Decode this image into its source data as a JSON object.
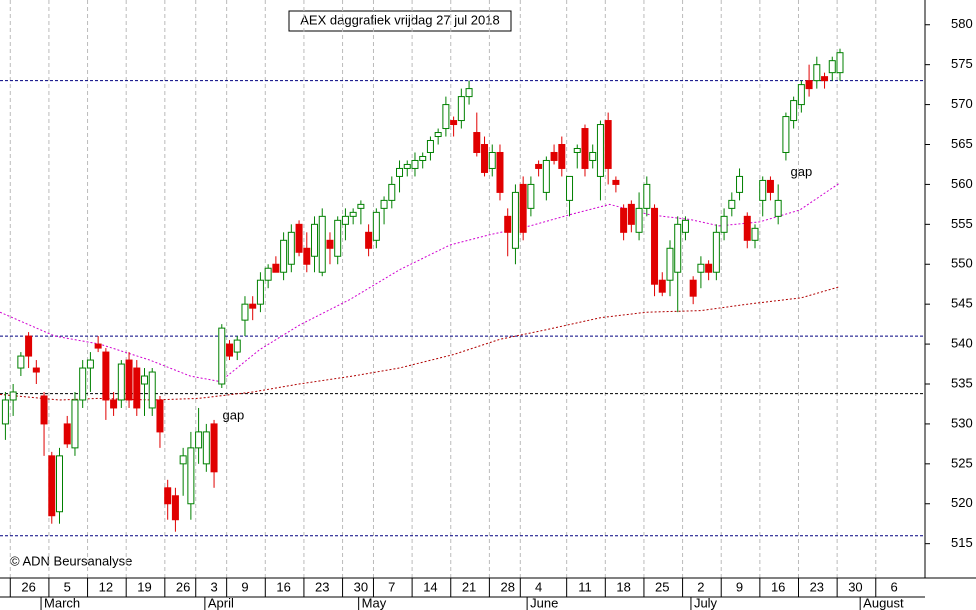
{
  "chart_data": {
    "type": "candlestick",
    "title": "AEX daggrafiek vrijdag 27 jul 2018",
    "annotations": [
      {
        "text": "gap",
        "x": 29.5,
        "y": 531
      },
      {
        "text": "gap",
        "x": 103,
        "y": 561.5
      }
    ],
    "copyright": "© ADN Beursanalyse",
    "xlim": [
      -0.7,
      119
    ],
    "ylim": [
      510.7,
      583.1
    ],
    "yticks": [
      515,
      520,
      525,
      530,
      535,
      540,
      545,
      550,
      555,
      560,
      565,
      570,
      575,
      580
    ],
    "xticks": [
      {
        "value": 3,
        "label": "26"
      },
      {
        "value": 8,
        "label": "5"
      },
      {
        "value": 13,
        "label": "12"
      },
      {
        "value": 18,
        "label": "19"
      },
      {
        "value": 23,
        "label": "26"
      },
      {
        "value": 27,
        "label": "3"
      },
      {
        "value": 31,
        "label": "9"
      },
      {
        "value": 36,
        "label": "16"
      },
      {
        "value": 41,
        "label": "23"
      },
      {
        "value": 46,
        "label": "30"
      },
      {
        "value": 50,
        "label": "7"
      },
      {
        "value": 55,
        "label": "14"
      },
      {
        "value": 60,
        "label": "21"
      },
      {
        "value": 65,
        "label": "28"
      },
      {
        "value": 69,
        "label": "4"
      },
      {
        "value": 75,
        "label": "11"
      },
      {
        "value": 80,
        "label": "18"
      },
      {
        "value": 85,
        "label": "25"
      },
      {
        "value": 90,
        "label": "2"
      },
      {
        "value": 95,
        "label": "9"
      },
      {
        "value": 100,
        "label": "16"
      },
      {
        "value": 105,
        "label": "23"
      },
      {
        "value": 110,
        "label": "30"
      },
      {
        "value": 115,
        "label": "6"
      }
    ],
    "months": [
      {
        "value": 5,
        "label": "March"
      },
      {
        "value": 26.2,
        "label": "April"
      },
      {
        "value": 46.1,
        "label": "May"
      },
      {
        "value": 67.9,
        "label": "June"
      },
      {
        "value": 89.1,
        "label": "July"
      },
      {
        "value": 111,
        "label": "August"
      }
    ],
    "up_color": "#008000",
    "down_color": "#e00000",
    "open": [
      530,
      533,
      537,
      541,
      537,
      533.5,
      526,
      519,
      530,
      527,
      533,
      537,
      540,
      539,
      533,
      533,
      538,
      537,
      535,
      532,
      533,
      522,
      521,
      525,
      520,
      527,
      525,
      530,
      535,
      540,
      539,
      543,
      545,
      545,
      548,
      550,
      549,
      550,
      555,
      552,
      551,
      549,
      553,
      551,
      555,
      556,
      557,
      554,
      553,
      557,
      558,
      561,
      562,
      562,
      563,
      564,
      566,
      567,
      568,
      568,
      571,
      566.5,
      565,
      562,
      564,
      556,
      552,
      560,
      557,
      562.5,
      559,
      564,
      565,
      558,
      564,
      567,
      563,
      561,
      568,
      560.5,
      557,
      557.5,
      554,
      557,
      557,
      548,
      548,
      549,
      554,
      548,
      549,
      550,
      549,
      554,
      557,
      559,
      556,
      553,
      558,
      560.5,
      556,
      564,
      568,
      570,
      573,
      573,
      573.5,
      574,
      574
    ],
    "high": [
      534,
      535,
      539,
      541.5,
      538,
      534,
      526.5,
      527,
      531,
      534,
      538,
      539,
      541,
      539.5,
      534,
      538,
      539,
      538,
      537,
      537,
      533.5,
      523,
      522,
      527,
      529,
      532,
      530,
      530.5,
      542.5,
      540.5,
      541,
      546,
      546,
      549,
      550,
      551,
      554,
      555,
      555.5,
      554,
      556,
      557,
      554,
      556,
      557,
      557,
      558,
      555,
      557,
      558.5,
      561,
      563,
      563,
      564,
      564,
      566,
      567,
      571,
      568.5,
      572,
      573,
      569,
      566,
      565,
      565,
      557,
      560,
      561,
      561,
      563,
      563.5,
      565,
      566,
      561,
      565,
      567.5,
      565,
      568,
      569,
      561,
      557.5,
      558,
      559,
      561,
      557.5,
      549,
      553,
      556,
      556,
      548.5,
      551,
      550.5,
      555,
      557,
      559,
      562,
      556.5,
      555,
      561,
      561,
      560,
      569,
      571,
      573,
      575,
      576,
      574,
      576,
      577
    ],
    "low": [
      528,
      531,
      536,
      537,
      535,
      526,
      517.5,
      517.5,
      527,
      526,
      532,
      534,
      539,
      530.5,
      531,
      532,
      532,
      531,
      531,
      531,
      527,
      518,
      516.5,
      521,
      518,
      525,
      524,
      522,
      534.5,
      538,
      538,
      541,
      543,
      544,
      547,
      549,
      548,
      549,
      551,
      549,
      549,
      548.5,
      550,
      550,
      553,
      555,
      555,
      551,
      552,
      555,
      557,
      559,
      561,
      561,
      562,
      563,
      565,
      566,
      566,
      567,
      570,
      563.5,
      561,
      561,
      558,
      551,
      550,
      553,
      556,
      561,
      558,
      562.5,
      561,
      556,
      562,
      561,
      562,
      558,
      560,
      559,
      553,
      554,
      553,
      556,
      546,
      546,
      546,
      544,
      553,
      545,
      547,
      548,
      548,
      553,
      556,
      558,
      552,
      552,
      556,
      558,
      555,
      563,
      567,
      569,
      571,
      572,
      572,
      573,
      573
    ],
    "close": [
      533,
      534,
      538.5,
      538.5,
      536.5,
      530,
      518.5,
      526,
      527.5,
      533,
      537,
      538,
      539.5,
      533,
      532,
      537.5,
      533,
      532,
      536,
      536.5,
      529,
      520,
      518,
      526,
      527,
      529,
      529,
      524,
      542,
      538.5,
      540.5,
      545,
      544.5,
      548,
      549.5,
      549,
      553,
      554,
      551.5,
      550,
      555,
      556,
      552,
      555.5,
      556,
      556.5,
      557.5,
      552,
      556.5,
      558,
      560,
      562,
      562.5,
      563,
      563.5,
      565.5,
      566.5,
      570,
      567.5,
      571,
      572,
      564,
      561.5,
      564,
      559,
      554,
      559,
      554,
      560,
      562,
      563,
      563,
      562,
      561,
      564.5,
      562,
      564,
      567.5,
      562,
      560,
      554,
      555,
      557,
      560,
      547.5,
      546.5,
      552,
      555,
      555.5,
      546,
      550,
      549,
      554,
      556,
      558,
      561,
      553,
      554.5,
      560.5,
      559,
      558,
      568.5,
      570.5,
      572.5,
      572,
      575,
      573,
      575.5,
      576.5
    ],
    "series": [
      {
        "name": "MA short",
        "color": "#d000d0",
        "x": [
          -0.7,
          6.4,
          12.2,
          18.7,
          23.9,
          27.8,
          32.9,
          38.1,
          44.6,
          51,
          57.5,
          62.7,
          67.9,
          73,
          78.2,
          83.4,
          88.6,
          92.4,
          97.6,
          102.8,
          108
        ],
        "values": [
          544,
          541,
          540,
          538,
          536,
          535.3,
          539.3,
          542.4,
          545.6,
          549.3,
          552.4,
          553.7,
          554.8,
          556.2,
          557.5,
          556.2,
          555.6,
          554.8,
          555.3,
          556.8,
          560.2
        ]
      },
      {
        "name": "MA long",
        "color": "#b00000",
        "x": [
          -0.7,
          7,
          12,
          19,
          25,
          32,
          38,
          45,
          51,
          58,
          64,
          70,
          77,
          83,
          90,
          96,
          103,
          108
        ],
        "values": [
          533.7,
          533,
          533.2,
          533,
          533.2,
          534,
          535,
          536,
          537,
          538.7,
          540.6,
          541.8,
          543.3,
          544,
          544.2,
          545,
          545.8,
          547.2
        ]
      }
    ],
    "reference_lines": [
      {
        "value": 573,
        "color": "#000080"
      },
      {
        "value": 541,
        "color": "#000080"
      },
      {
        "value": 533.8,
        "color": "#000000"
      },
      {
        "value": 516,
        "color": "#000080"
      }
    ]
  }
}
